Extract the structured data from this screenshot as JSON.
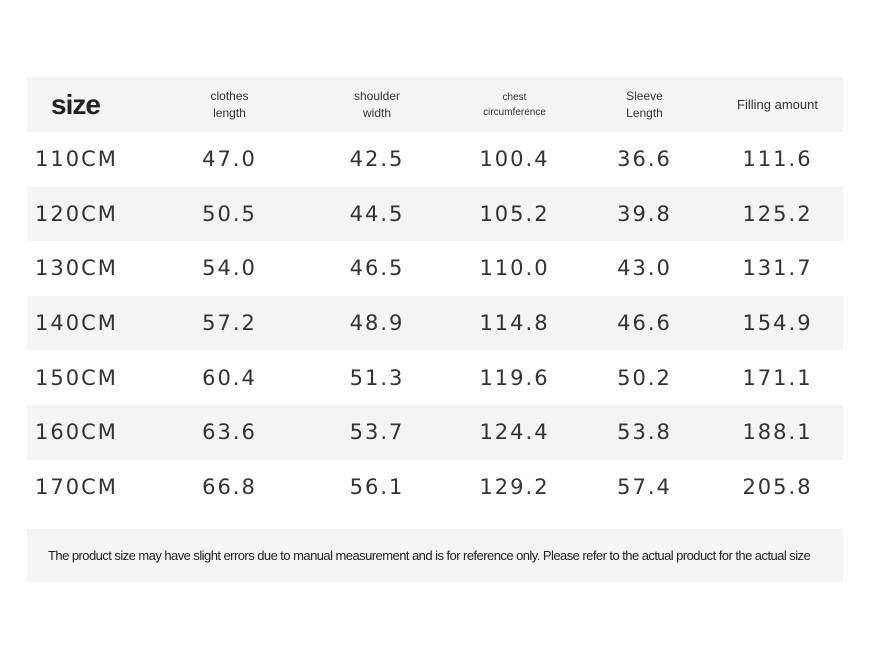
{
  "table": {
    "headers": {
      "size": "size",
      "clothes_length": [
        "clothes",
        "length"
      ],
      "shoulder_width": [
        "shoulder",
        "width"
      ],
      "chest_circumference": [
        "chest",
        "circumference"
      ],
      "sleeve_length": [
        "Sleeve",
        "Length"
      ],
      "filling_amount": "Filling amount"
    },
    "rows": [
      {
        "size": "110CM",
        "clothes_length": "47.0",
        "shoulder_width": "42.5",
        "chest": "100.4",
        "sleeve": "36.6",
        "filling": "111.6"
      },
      {
        "size": "120CM",
        "clothes_length": "50.5",
        "shoulder_width": "44.5",
        "chest": "105.2",
        "sleeve": "39.8",
        "filling": "125.2"
      },
      {
        "size": "130CM",
        "clothes_length": "54.0",
        "shoulder_width": "46.5",
        "chest": "110.0",
        "sleeve": "43.0",
        "filling": "131.7"
      },
      {
        "size": "140CM",
        "clothes_length": "57.2",
        "shoulder_width": "48.9",
        "chest": "114.8",
        "sleeve": "46.6",
        "filling": "154.9"
      },
      {
        "size": "150CM",
        "clothes_length": "60.4",
        "shoulder_width": "51.3",
        "chest": "119.6",
        "sleeve": "50.2",
        "filling": "171.1"
      },
      {
        "size": "160CM",
        "clothes_length": "63.6",
        "shoulder_width": "53.7",
        "chest": "124.4",
        "sleeve": "53.8",
        "filling": "188.1"
      },
      {
        "size": "170CM",
        "clothes_length": "66.8",
        "shoulder_width": "56.1",
        "chest": "129.2",
        "sleeve": "57.4",
        "filling": "205.8"
      }
    ]
  },
  "note": "The product size may have slight errors due to manual measurement and is for reference only. Please refer to the actual product for the actual size",
  "colors": {
    "row_shade": "#f4f4f4",
    "rule": "#c9c9c9",
    "text": "#333333"
  }
}
